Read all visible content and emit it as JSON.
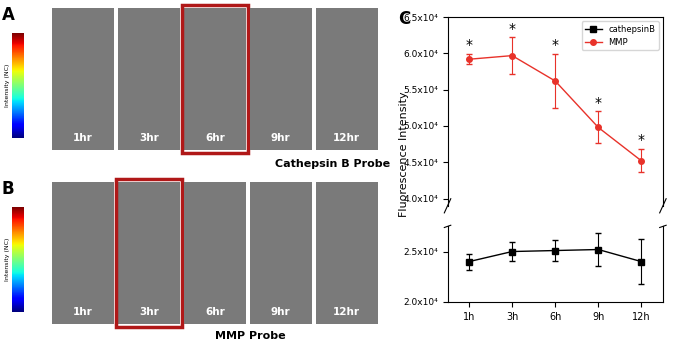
{
  "panels": [
    {
      "label": "A",
      "probe": "Cathepsin B Probe",
      "times": [
        "1hr",
        "3hr",
        "6hr",
        "9hr",
        "12hr"
      ],
      "highlight": "6hr",
      "colorbar_label": "Intensity (NC)"
    },
    {
      "label": "B",
      "probe": "MMP Probe",
      "times": [
        "1hr",
        "3hr",
        "6hr",
        "9hr",
        "12hr"
      ],
      "highlight": "3hr",
      "colorbar_label": "Intensity (NC)"
    }
  ],
  "chart_label": "C",
  "chart_data": [
    {
      "type": "line",
      "ylabel": "Fluorescence Intensity",
      "categories": [
        "1h",
        "3h",
        "6h",
        "9h",
        "12h"
      ],
      "tick_labels": "y",
      "ylim": [
        39000,
        65000
      ],
      "yticks": [
        {
          "value": 40000,
          "label": "4.0x10⁴"
        },
        {
          "value": 45000,
          "label": "4.5x10⁴"
        },
        {
          "value": 50000,
          "label": "5.0x10⁴"
        },
        {
          "value": 55000,
          "label": "5.5x10⁴"
        },
        {
          "value": 60000,
          "label": "6.0x10⁴"
        },
        {
          "value": 65000,
          "label": "6.5x10⁴"
        }
      ],
      "legend": "upper right",
      "series": [
        {
          "name": "MMP",
          "color": "#e8322a",
          "marker": "circle",
          "values": [
            59200,
            59700,
            56200,
            49800,
            45200
          ],
          "errors": [
            700,
            2500,
            3700,
            2200,
            1600
          ],
          "annotations": [
            "*",
            "*",
            "*",
            "*",
            "*"
          ]
        }
      ]
    },
    {
      "type": "line",
      "categories": [
        "1h",
        "3h",
        "6h",
        "9h",
        "12h"
      ],
      "ylim": [
        20000,
        27500
      ],
      "yticks": [
        {
          "value": 20000,
          "label": "2.0x10⁴"
        },
        {
          "value": 25000,
          "label": "2.5x10⁴"
        }
      ],
      "series": [
        {
          "name": "cathepsinB",
          "color": "#000000",
          "marker": "square",
          "values": [
            24000,
            25000,
            25100,
            25200,
            24000
          ],
          "errors": [
            800,
            900,
            1000,
            1600,
            2200
          ]
        }
      ]
    }
  ]
}
